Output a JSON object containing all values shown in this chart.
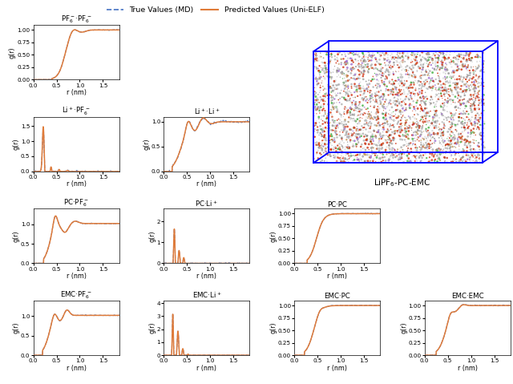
{
  "legend": {
    "true_label": "True Values (MD)",
    "pred_label": "Predicted Values (Uni-ELF)",
    "true_color": "#4472c4",
    "pred_color": "#e07b39",
    "true_ls": "--",
    "pred_ls": "-"
  },
  "xlabel": "r (nm)",
  "ylabel": "g(r)",
  "mol_label": "LiPF$_6$-PC-EMC",
  "background": "#f5f5f5"
}
